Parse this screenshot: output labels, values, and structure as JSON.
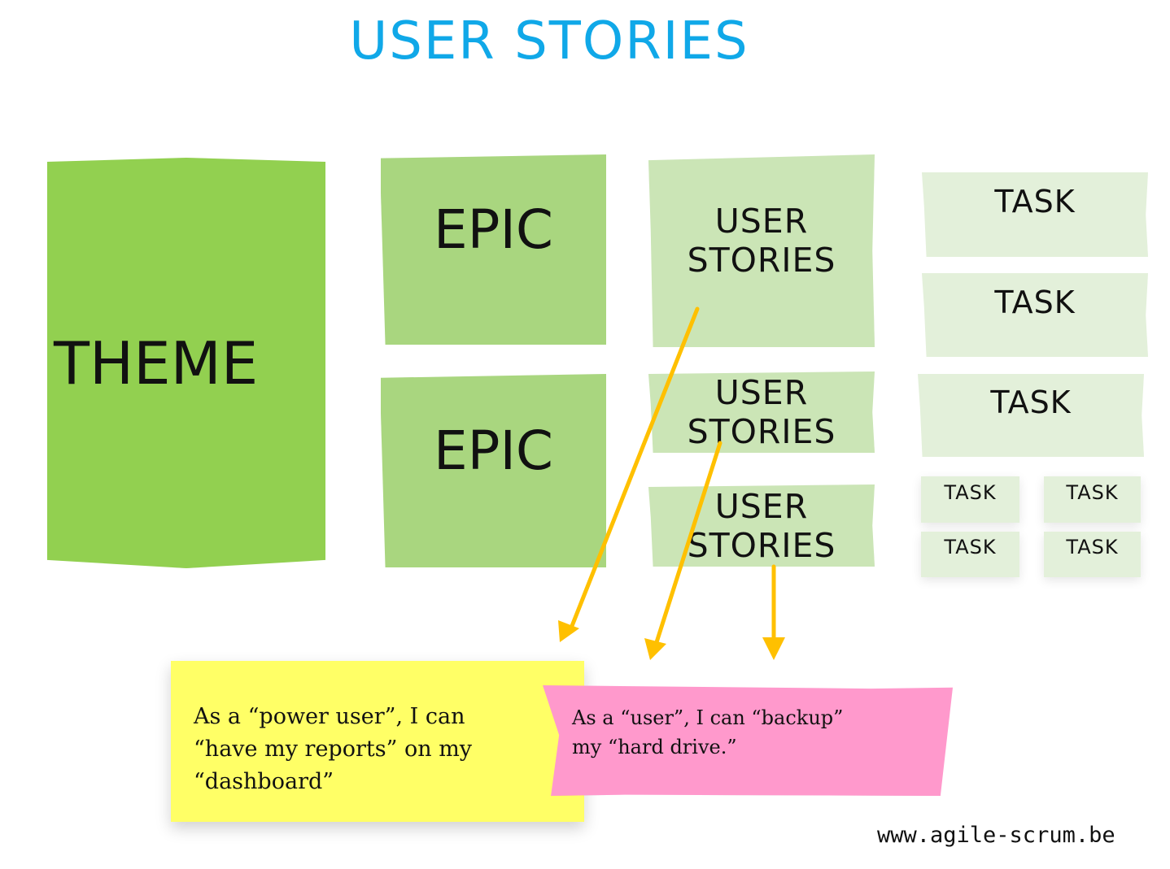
{
  "title": "USER STORIES",
  "theme": {
    "label": "THEME"
  },
  "epics": [
    "EPIC",
    "EPIC"
  ],
  "stories": [
    {
      "line1": "USER",
      "line2": "STORIES"
    },
    {
      "line1": "USER",
      "line2": "STORIES"
    },
    {
      "line1": "USER",
      "line2": "STORIES"
    }
  ],
  "tasks": [
    "TASK",
    "TASK",
    "TASK",
    "TASK",
    "TASK",
    "TASK",
    "TASK"
  ],
  "notes": {
    "yellow": {
      "line1": "As a “power user”, I can",
      "line2": "“have my reports” on my",
      "line3": "“dashboard”"
    },
    "pink": {
      "line1": "As a “user”, I can “backup”",
      "line2": "my “hard drive.”"
    }
  },
  "footer": {
    "url": "www.agile-scrum.be"
  },
  "colors": {
    "title": "#10a8e8",
    "theme": "#92d050",
    "epic": "#a9d67f",
    "story": "#cbe5b6",
    "task": "#e3f0da",
    "note_yellow": "#ffff66",
    "note_pink": "#ff99cc",
    "arrow": "#ffc000"
  }
}
